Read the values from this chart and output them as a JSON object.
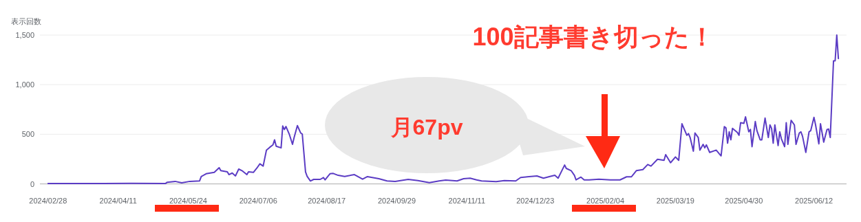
{
  "chart_data": {
    "type": "line",
    "ylabel": "表示回数",
    "annotations": [
      "100記事書き切った！",
      "月67pv"
    ],
    "x": [
      "2024-02-28",
      "2024-04-02",
      "2024-04-19",
      "2024-05-10",
      "2024-05-11",
      "2024-05-16",
      "2024-05-20",
      "2024-05-25",
      "2024-05-31",
      "2024-06-01",
      "2024-06-04",
      "2024-06-09",
      "2024-06-12",
      "2024-06-13",
      "2024-06-17",
      "2024-06-18",
      "2024-06-20",
      "2024-06-22",
      "2024-06-24",
      "2024-06-26",
      "2024-06-29",
      "2024-06-30",
      "2024-07-03",
      "2024-07-05",
      "2024-07-07",
      "2024-07-09",
      "2024-07-11",
      "2024-07-13",
      "2024-07-15",
      "2024-07-16",
      "2024-07-17",
      "2024-07-20",
      "2024-07-21",
      "2024-07-22",
      "2024-07-23",
      "2024-07-25",
      "2024-07-27",
      "2024-07-28",
      "2024-07-30",
      "2024-08-01",
      "2024-08-02",
      "2024-08-04",
      "2024-08-05",
      "2024-08-07",
      "2024-08-09",
      "2024-08-13",
      "2024-08-15",
      "2024-08-16",
      "2024-08-19",
      "2024-08-21",
      "2024-08-24",
      "2024-08-28",
      "2024-09-03",
      "2024-09-08",
      "2024-09-11",
      "2024-09-18",
      "2024-09-23",
      "2024-09-28",
      "2024-10-06",
      "2024-10-12",
      "2024-10-19",
      "2024-10-25",
      "2024-10-29",
      "2024-11-05",
      "2024-11-09",
      "2024-11-13",
      "2024-11-17",
      "2024-11-20",
      "2024-11-29",
      "2024-12-04",
      "2024-12-11",
      "2024-12-14",
      "2024-12-18",
      "2024-12-24",
      "2024-12-28",
      "2025-01-01",
      "2025-01-04",
      "2025-01-06",
      "2025-01-10",
      "2025-01-11",
      "2025-01-14",
      "2025-01-16",
      "2025-01-17",
      "2025-01-20",
      "2025-01-22",
      "2025-01-25",
      "2025-01-31",
      "2025-02-07",
      "2025-02-13",
      "2025-02-17",
      "2025-02-20",
      "2025-02-23",
      "2025-02-27",
      "2025-03-02",
      "2025-03-04",
      "2025-03-08",
      "2025-03-12",
      "2025-03-13",
      "2025-03-16",
      "2025-03-19",
      "2025-03-21",
      "2025-03-23",
      "2025-03-26",
      "2025-03-27",
      "2025-03-28",
      "2025-03-30",
      "2025-03-31",
      "2025-04-02",
      "2025-04-03",
      "2025-04-05",
      "2025-04-06",
      "2025-04-07",
      "2025-04-09",
      "2025-04-13",
      "2025-04-16",
      "2025-04-18",
      "2025-04-19",
      "2025-04-20",
      "2025-04-21",
      "2025-04-22",
      "2025-04-23",
      "2025-04-26",
      "2025-04-27",
      "2025-04-28",
      "2025-04-30",
      "2025-05-01",
      "2025-05-03",
      "2025-05-04",
      "2025-05-05",
      "2025-05-07",
      "2025-05-08",
      "2025-05-10",
      "2025-05-11",
      "2025-05-13",
      "2025-05-15",
      "2025-05-16",
      "2025-05-17",
      "2025-05-18",
      "2025-05-19",
      "2025-05-21",
      "2025-05-22",
      "2025-05-23",
      "2025-05-25",
      "2025-05-26",
      "2025-05-27",
      "2025-05-29",
      "2025-05-31",
      "2025-06-01",
      "2025-06-03",
      "2025-06-04",
      "2025-06-05",
      "2025-06-07",
      "2025-06-09",
      "2025-06-10",
      "2025-06-12",
      "2025-06-13",
      "2025-06-15",
      "2025-06-16",
      "2025-06-18",
      "2025-06-20",
      "2025-06-21",
      "2025-06-22",
      "2025-06-24",
      "2025-06-25",
      "2025-06-26",
      "2025-06-27"
    ],
    "values": [
      3,
      3,
      5,
      3,
      15,
      25,
      10,
      25,
      30,
      73,
      102,
      116,
      163,
      133,
      121,
      93,
      109,
      80,
      149,
      133,
      93,
      121,
      116,
      156,
      202,
      179,
      340,
      368,
      393,
      444,
      379,
      363,
      583,
      548,
      578,
      502,
      398,
      467,
      587,
      513,
      502,
      121,
      75,
      29,
      45,
      45,
      64,
      40,
      102,
      105,
      86,
      75,
      93,
      47,
      73,
      52,
      29,
      24,
      45,
      33,
      12,
      29,
      38,
      29,
      52,
      57,
      40,
      29,
      22,
      33,
      29,
      64,
      71,
      80,
      57,
      75,
      86,
      57,
      190,
      156,
      133,
      86,
      40,
      68,
      40,
      40,
      47,
      40,
      40,
      71,
      71,
      133,
      144,
      195,
      179,
      248,
      237,
      294,
      213,
      271,
      237,
      606,
      490,
      507,
      467,
      329,
      513,
      467,
      340,
      398,
      363,
      393,
      317,
      340,
      282,
      576,
      564,
      410,
      525,
      444,
      559,
      518,
      490,
      617,
      610,
      675,
      525,
      548,
      375,
      628,
      536,
      444,
      444,
      663,
      467,
      594,
      559,
      410,
      594,
      386,
      525,
      455,
      375,
      617,
      398,
      640,
      594,
      398,
      513,
      525,
      479,
      317,
      525,
      536,
      670,
      594,
      403,
      606,
      421,
      548,
      552,
      467,
      1240,
      1240,
      1500,
      1263
    ],
    "color": "#5b3cc4",
    "xlim": [
      "2024-02-23",
      "2025-07-02"
    ],
    "ylim": [
      0,
      1500
    ],
    "xticks": [
      {
        "value": "2024-02-28",
        "label": "2024/02/28"
      },
      {
        "value": "2024-04-11",
        "label": "2024/04/11"
      },
      {
        "value": "2024-05-24",
        "label": "2024/05/24"
      },
      {
        "value": "2024-07-06",
        "label": "2024/07/06"
      },
      {
        "value": "2024-08-17",
        "label": "2024/08/17"
      },
      {
        "value": "2024-09-29",
        "label": "2024/09/29"
      },
      {
        "value": "2024-11-11",
        "label": "2024/11/11"
      },
      {
        "value": "2024-12-23",
        "label": "2024/12/23"
      },
      {
        "value": "2025-02-04",
        "label": "2025/02/04"
      },
      {
        "value": "2025-03-19",
        "label": "2025/03/19"
      },
      {
        "value": "2025-04-30",
        "label": "2025/04/30"
      },
      {
        "value": "2025-06-12",
        "label": "2025/06/12"
      }
    ],
    "yticks": [
      0,
      500,
      {
        "value": 1000,
        "label": "1,000"
      },
      {
        "value": 1500,
        "label": "1,500"
      }
    ],
    "grid": "y"
  }
}
